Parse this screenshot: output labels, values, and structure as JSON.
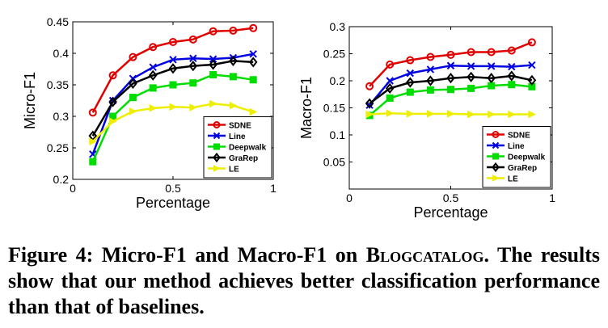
{
  "chart_data": [
    {
      "type": "line",
      "xlabel": "Percentage",
      "ylabel": "Micro-F1",
      "xlim": [
        0,
        1
      ],
      "ylim": [
        0.2,
        0.45
      ],
      "xticks": [
        "0",
        "0.5",
        "1"
      ],
      "yticks": [
        "0.2",
        "0.25",
        "0.3",
        "0.35",
        "0.4",
        "0.45"
      ],
      "x": [
        0.1,
        0.2,
        0.3,
        0.4,
        0.5,
        0.6,
        0.7,
        0.8,
        0.9
      ],
      "legend_position": "bottom-right",
      "grid": false,
      "series": [
        {
          "name": "SDNE",
          "color": "#e00000",
          "marker": "circle",
          "values": [
            0.306,
            0.365,
            0.394,
            0.41,
            0.418,
            0.422,
            0.435,
            0.436,
            0.44
          ]
        },
        {
          "name": "Line",
          "color": "#0000e0",
          "marker": "x",
          "values": [
            0.24,
            0.325,
            0.36,
            0.378,
            0.39,
            0.392,
            0.391,
            0.393,
            0.399
          ]
        },
        {
          "name": "Deepwalk",
          "color": "#00dd00",
          "marker": "square",
          "values": [
            0.228,
            0.3,
            0.33,
            0.345,
            0.35,
            0.353,
            0.366,
            0.363,
            0.358
          ]
        },
        {
          "name": "GraRep",
          "color": "#000000",
          "marker": "diamond",
          "values": [
            0.269,
            0.323,
            0.352,
            0.365,
            0.376,
            0.38,
            0.382,
            0.388,
            0.386
          ]
        },
        {
          "name": "LE",
          "color": "#eeee00",
          "marker": "triangle-right",
          "values": [
            0.26,
            0.292,
            0.308,
            0.313,
            0.315,
            0.314,
            0.32,
            0.317,
            0.307
          ]
        }
      ]
    },
    {
      "type": "line",
      "xlabel": "Percentage",
      "ylabel": "Macro-F1",
      "xlim": [
        0,
        1
      ],
      "ylim": [
        0,
        0.3
      ],
      "xticks": [
        "0",
        "0.5",
        "1"
      ],
      "yticks": [
        "0.05",
        "0.1",
        "0.15",
        "0.2",
        "0.25",
        "0.3"
      ],
      "x": [
        0.1,
        0.2,
        0.3,
        0.4,
        0.5,
        0.6,
        0.7,
        0.8,
        0.9
      ],
      "legend_position": "bottom-right",
      "grid": false,
      "series": [
        {
          "name": "SDNE",
          "color": "#e00000",
          "marker": "circle",
          "values": [
            0.19,
            0.23,
            0.238,
            0.244,
            0.248,
            0.253,
            0.253,
            0.256,
            0.271
          ]
        },
        {
          "name": "Line",
          "color": "#0000e0",
          "marker": "x",
          "values": [
            0.155,
            0.2,
            0.214,
            0.221,
            0.228,
            0.227,
            0.227,
            0.226,
            0.229
          ]
        },
        {
          "name": "Deepwalk",
          "color": "#00dd00",
          "marker": "square",
          "values": [
            0.136,
            0.168,
            0.179,
            0.183,
            0.184,
            0.186,
            0.191,
            0.193,
            0.189
          ]
        },
        {
          "name": "GraRep",
          "color": "#000000",
          "marker": "diamond",
          "values": [
            0.158,
            0.186,
            0.197,
            0.2,
            0.205,
            0.207,
            0.205,
            0.209,
            0.201
          ]
        },
        {
          "name": "LE",
          "color": "#eeee00",
          "marker": "triangle-right",
          "values": [
            0.138,
            0.14,
            0.139,
            0.139,
            0.139,
            0.138,
            0.138,
            0.138,
            0.138
          ]
        }
      ]
    }
  ],
  "caption": {
    "prefix": "Figure 4: Micro-F1 and Macro-F1 on ",
    "dataset": "Blogcatalog",
    "suffix": ". The results show that our method achieves better classification performance than that of baselines."
  }
}
